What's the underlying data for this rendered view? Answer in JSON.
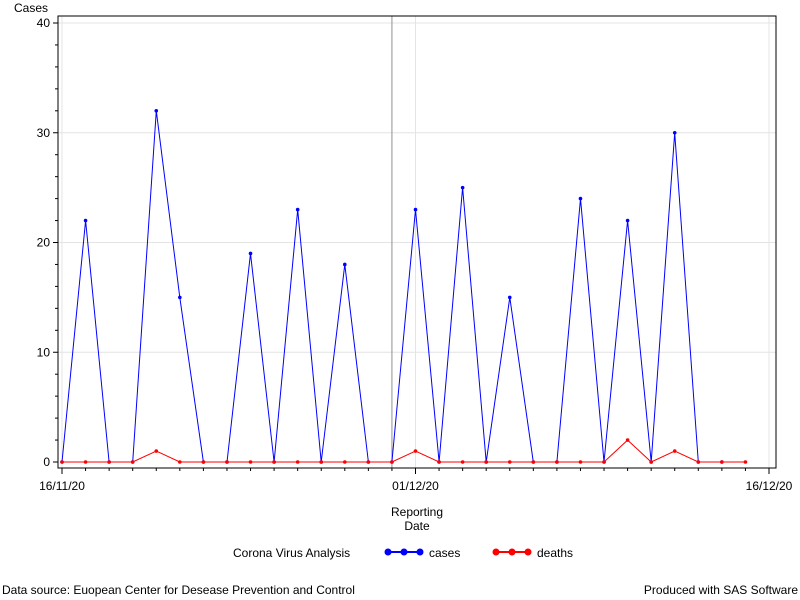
{
  "footer": {
    "left": "Data source: Euopean Center for Desease Prevention and Control",
    "right": "Produced with SAS Software"
  },
  "chart_data": {
    "type": "line",
    "title": "",
    "ylabel": "Cases",
    "xlabel_lines": [
      "Reporting",
      "Date"
    ],
    "legend_title": "Corona Virus Analysis",
    "legend_position": "bottom",
    "grid": true,
    "ylim": [
      0,
      40
    ],
    "y_ticks": [
      0,
      10,
      20,
      30,
      40
    ],
    "xlim": [
      "2020-11-16",
      "2020-12-16"
    ],
    "x_ticks": [
      {
        "date": "2020-11-16",
        "label": "16/11/20"
      },
      {
        "date": "2020-12-01",
        "label": "01/12/20"
      },
      {
        "date": "2020-12-16",
        "label": "16/12/20"
      }
    ],
    "reference_line_date": "2020-11-30",
    "x": [
      "2020-11-16",
      "2020-11-17",
      "2020-11-18",
      "2020-11-19",
      "2020-11-20",
      "2020-11-21",
      "2020-11-22",
      "2020-11-23",
      "2020-11-24",
      "2020-11-25",
      "2020-11-26",
      "2020-11-27",
      "2020-11-28",
      "2020-11-29",
      "2020-11-30",
      "2020-12-01",
      "2020-12-02",
      "2020-12-03",
      "2020-12-04",
      "2020-12-05",
      "2020-12-06",
      "2020-12-07",
      "2020-12-08",
      "2020-12-09",
      "2020-12-10",
      "2020-12-11",
      "2020-12-12",
      "2020-12-13",
      "2020-12-14",
      "2020-12-15"
    ],
    "series": [
      {
        "name": "cases",
        "color": "#0000ff",
        "values": [
          0,
          22,
          0,
          0,
          32,
          15,
          0,
          0,
          19,
          0,
          23,
          0,
          18,
          0,
          0,
          23,
          0,
          25,
          0,
          15,
          0,
          0,
          24,
          0,
          22,
          0,
          30,
          0,
          0,
          null
        ]
      },
      {
        "name": "deaths",
        "color": "#ff0000",
        "values": [
          0,
          0,
          0,
          0,
          1,
          0,
          0,
          0,
          0,
          0,
          0,
          0,
          0,
          0,
          0,
          1,
          0,
          0,
          0,
          0,
          0,
          0,
          0,
          0,
          2,
          0,
          1,
          0,
          0,
          0
        ]
      }
    ]
  }
}
